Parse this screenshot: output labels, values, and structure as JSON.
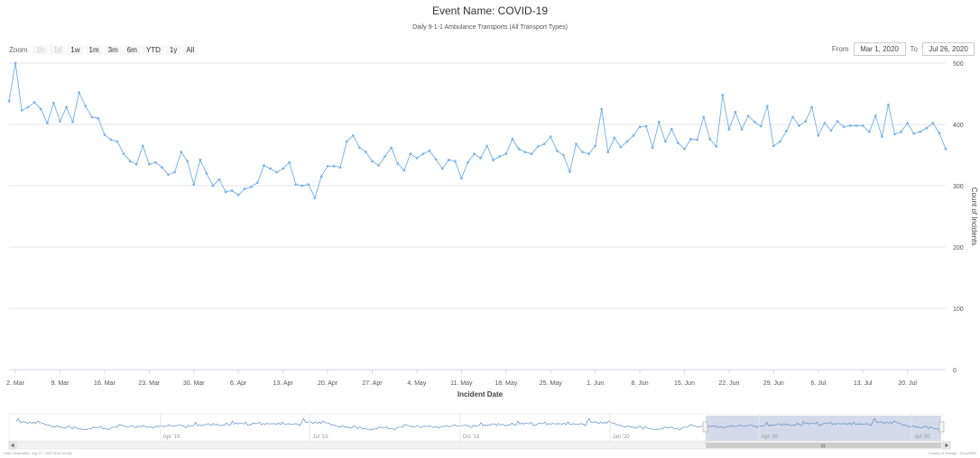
{
  "header": {
    "title": "Event Name: COVID-19",
    "subtitle": "Daily 9-1-1 Ambulance Transports (All Transport Types)"
  },
  "zoom": {
    "label": "Zoom",
    "buttons": [
      {
        "label": "1h",
        "enabled": false
      },
      {
        "label": "1d",
        "enabled": false
      },
      {
        "label": "1w",
        "enabled": true
      },
      {
        "label": "1m",
        "enabled": true
      },
      {
        "label": "3m",
        "enabled": true
      },
      {
        "label": "6m",
        "enabled": true
      },
      {
        "label": "YTD",
        "enabled": true
      },
      {
        "label": "1y",
        "enabled": true
      },
      {
        "label": "All",
        "enabled": true
      }
    ]
  },
  "range": {
    "from_label": "From",
    "from_value": "Mar 1, 2020",
    "to_label": "To",
    "to_value": "Jul 26, 2020"
  },
  "chart_data": {
    "type": "line",
    "title": "Event Name: COVID-19",
    "subtitle": "Daily 9-1-1 Ambulance Transports (All Transport Types)",
    "xlabel": "Incident Date",
    "ylabel": "Count of Incidents",
    "ylim": [
      0,
      500
    ],
    "y_ticks": [
      "0",
      "100",
      "200",
      "300",
      "400",
      "500"
    ],
    "x_ticks": [
      "2. Mar",
      "9. Mar",
      "16. Mar",
      "23. Mar",
      "30. Mar",
      "6. Apr",
      "13. Apr",
      "20. Apr",
      "27. Apr",
      "4. May",
      "11. May",
      "18. May",
      "25. May",
      "1. Jun",
      "8. Jun",
      "15. Jun",
      "22. Jun",
      "29. Jun",
      "6. Jul",
      "13. Jul",
      "20. Jul"
    ],
    "grid": true,
    "color": "#7cb5ec",
    "x_start": "2020-03-01",
    "x_end": "2020-07-26",
    "series": [
      {
        "values": [
          438,
          500,
          423,
          428,
          436,
          425,
          402,
          435,
          405,
          428,
          404,
          452,
          430,
          412,
          410,
          383,
          375,
          372,
          352,
          340,
          335,
          365,
          335,
          338,
          330,
          318,
          322,
          355,
          340,
          302,
          342,
          320,
          300,
          310,
          290,
          292,
          285,
          295,
          298,
          305,
          333,
          328,
          322,
          328,
          338,
          302,
          300,
          302,
          280,
          315,
          332,
          332,
          330,
          372,
          382,
          362,
          355,
          340,
          333,
          348,
          362,
          336,
          325,
          352,
          345,
          352,
          357,
          343,
          328,
          342,
          340,
          312,
          338,
          352,
          345,
          365,
          342,
          348,
          352,
          376,
          360,
          355,
          352,
          364,
          368,
          380,
          357,
          350,
          323,
          368,
          355,
          352,
          365,
          425,
          355,
          378,
          363,
          372,
          382,
          396,
          397,
          362,
          404,
          372,
          392,
          370,
          360,
          376,
          375,
          412,
          376,
          364,
          448,
          392,
          420,
          392,
          414,
          404,
          397,
          430,
          365,
          372,
          389,
          412,
          398,
          405,
          428,
          382,
          402,
          390,
          405,
          396,
          398,
          398,
          398,
          388,
          414,
          380,
          432,
          384,
          388,
          402,
          385,
          388,
          394,
          402,
          386,
          360
        ]
      }
    ],
    "navigator": {
      "x_ticks": [
        "Apr '19",
        "Jul '19",
        "Oct '19",
        "Jan '20",
        "Apr '20",
        "Jul '20"
      ]
    }
  },
  "footer": {
    "left": "Date Generated: July 27, 2020 8:41:34 AM",
    "right": "County of Orange - HCA/EMS"
  }
}
